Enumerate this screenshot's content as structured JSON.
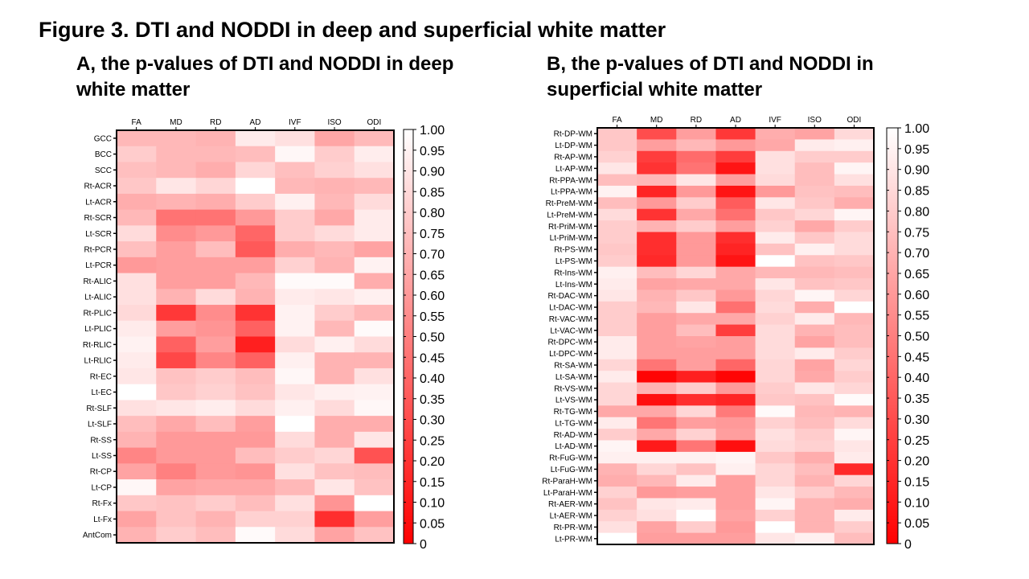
{
  "title": "Figure 3. DTI and NODDI in deep and superficial white matter",
  "colors": {
    "low": "#ff0000",
    "high": "#ffffff"
  },
  "chart_data": [
    {
      "type": "heatmap",
      "title": "A, the p-values of DTI and NODDI in deep white matter",
      "columns": [
        "FA",
        "MD",
        "RD",
        "AD",
        "IVF",
        "ISO",
        "ODI"
      ],
      "rows": [
        "GCC",
        "BCC",
        "SCC",
        "Rt-ACR",
        "Lt-ACR",
        "Rt-SCR",
        "Lt-SCR",
        "Rt-PCR",
        "Lt-PCR",
        "Rt-ALIC",
        "Lt-ALIC",
        "Rt-PLIC",
        "Lt-PLIC",
        "Rt-RLIC",
        "Lt-RLIC",
        "Rt-EC",
        "Lt-EC",
        "Rt-SLF",
        "Lt-SLF",
        "Rt-SS",
        "Lt-SS",
        "Rt-CP",
        "Lt-CP",
        "Rt-Fx",
        "Lt-Fx",
        "AntCom"
      ],
      "values": [
        [
          0.72,
          0.72,
          0.7,
          0.92,
          0.88,
          0.65,
          0.73
        ],
        [
          0.8,
          0.72,
          0.72,
          0.74,
          0.97,
          0.8,
          0.93
        ],
        [
          0.75,
          0.72,
          0.68,
          0.84,
          0.75,
          0.82,
          0.88
        ],
        [
          0.78,
          0.9,
          0.84,
          1.0,
          0.72,
          0.7,
          0.72
        ],
        [
          0.68,
          0.7,
          0.68,
          0.8,
          0.94,
          0.72,
          0.86
        ],
        [
          0.72,
          0.45,
          0.45,
          0.6,
          0.8,
          0.66,
          0.92
        ],
        [
          0.86,
          0.55,
          0.6,
          0.4,
          0.8,
          0.86,
          0.92
        ],
        [
          0.75,
          0.62,
          0.74,
          0.35,
          0.68,
          0.72,
          0.64
        ],
        [
          0.6,
          0.62,
          0.62,
          0.62,
          0.82,
          0.7,
          0.95
        ],
        [
          0.88,
          0.62,
          0.62,
          0.72,
          0.98,
          0.98,
          0.68
        ],
        [
          0.88,
          0.7,
          0.86,
          0.7,
          0.92,
          0.9,
          0.94
        ],
        [
          0.85,
          0.22,
          0.55,
          0.2,
          0.95,
          0.8,
          0.72
        ],
        [
          0.92,
          0.62,
          0.58,
          0.38,
          0.95,
          0.72,
          0.98
        ],
        [
          0.95,
          0.38,
          0.62,
          0.12,
          0.86,
          0.94,
          0.86
        ],
        [
          0.92,
          0.28,
          0.52,
          0.38,
          0.94,
          0.7,
          0.7
        ],
        [
          0.9,
          0.76,
          0.8,
          0.74,
          0.97,
          0.7,
          0.88
        ],
        [
          1.0,
          0.78,
          0.82,
          0.76,
          0.9,
          0.94,
          0.95
        ],
        [
          0.88,
          0.9,
          0.93,
          0.86,
          0.94,
          0.86,
          0.97
        ],
        [
          0.74,
          0.66,
          0.74,
          0.62,
          1.0,
          0.68,
          0.68
        ],
        [
          0.7,
          0.6,
          0.6,
          0.6,
          0.86,
          0.68,
          0.9
        ],
        [
          0.52,
          0.6,
          0.6,
          0.74,
          0.8,
          0.84,
          0.32
        ],
        [
          0.64,
          0.5,
          0.6,
          0.58,
          0.88,
          0.76,
          0.74
        ],
        [
          0.97,
          0.64,
          0.66,
          0.66,
          0.72,
          0.9,
          0.76
        ],
        [
          0.78,
          0.76,
          0.8,
          0.74,
          0.88,
          0.58,
          1.0
        ],
        [
          0.64,
          0.76,
          0.7,
          0.82,
          0.82,
          0.18,
          0.62
        ],
        [
          0.7,
          0.8,
          0.74,
          0.98,
          0.86,
          0.64,
          0.76
        ]
      ],
      "colorbar": {
        "range": [
          0,
          1
        ],
        "ticks": [
          "1.00",
          "0.95",
          "0.90",
          "0.85",
          "0.80",
          "0.75",
          "0.70",
          "0.65",
          "0.60",
          "0.55",
          "0.50",
          "0.45",
          "0.40",
          "0.35",
          "0.30",
          "0.25",
          "0.20",
          "0.15",
          "0.10",
          "0.05",
          "0"
        ]
      }
    },
    {
      "type": "heatmap",
      "title": "B, the p-values of DTI and NODDI in superficial white matter",
      "columns": [
        "FA",
        "MD",
        "RD",
        "AD",
        "IVF",
        "ISO",
        "ODI"
      ],
      "rows": [
        "Rt-DP-WM",
        "Lt-DP-WM",
        "Rt-AP-WM",
        "Lt-AP-WM",
        "Rt-PPA-WM",
        "Lt-PPA-WM",
        "Rt-PreM-WM",
        "Lt-PreM-WM",
        "Rt-PriM-WM",
        "Lt-PriM-WM",
        "Rt-PS-WM",
        "Lt-PS-WM",
        "Rt-Ins-WM",
        "Lt-Ins-WM",
        "Rt-DAC-WM",
        "Lt-DAC-WM",
        "Rt-VAC-WM",
        "Lt-VAC-WM",
        "Rt-DPC-WM",
        "Lt-DPC-WM",
        "Rt-SA-WM",
        "Lt-SA-WM",
        "Rt-VS-WM",
        "Lt-VS-WM",
        "Rt-TG-WM",
        "Lt-TG-WM",
        "Rt-AD-WM",
        "Lt-AD-WM",
        "Rt-FuG-WM",
        "Lt-FuG-WM",
        "Rt-ParaH-WM",
        "Lt-ParaH-WM",
        "Rt-AER-WM",
        "Lt-AER-WM",
        "Rt-PR-WM",
        "Lt-PR-WM"
      ],
      "values": [
        [
          0.78,
          0.3,
          0.62,
          0.22,
          0.68,
          0.64,
          0.85
        ],
        [
          0.78,
          0.62,
          0.72,
          0.6,
          0.66,
          0.92,
          0.94
        ],
        [
          0.82,
          0.24,
          0.42,
          0.24,
          0.88,
          0.8,
          0.8
        ],
        [
          0.9,
          0.2,
          0.45,
          0.08,
          0.88,
          0.74,
          0.96
        ],
        [
          0.74,
          0.72,
          0.9,
          0.62,
          0.86,
          0.74,
          0.88
        ],
        [
          0.95,
          0.14,
          0.6,
          0.08,
          0.6,
          0.76,
          0.74
        ],
        [
          0.74,
          0.6,
          0.8,
          0.36,
          0.9,
          0.78,
          0.68
        ],
        [
          0.86,
          0.2,
          0.66,
          0.44,
          0.78,
          0.84,
          0.96
        ],
        [
          0.8,
          0.7,
          0.8,
          0.62,
          0.82,
          0.66,
          0.8
        ],
        [
          0.8,
          0.18,
          0.6,
          0.18,
          0.92,
          0.78,
          0.86
        ],
        [
          0.78,
          0.18,
          0.6,
          0.14,
          0.76,
          0.94,
          0.86
        ],
        [
          0.8,
          0.16,
          0.6,
          0.08,
          1.0,
          0.76,
          0.78
        ],
        [
          0.94,
          0.74,
          0.84,
          0.66,
          0.72,
          0.72,
          0.74
        ],
        [
          0.92,
          0.64,
          0.66,
          0.66,
          0.9,
          0.76,
          0.78
        ],
        [
          0.9,
          0.7,
          0.78,
          0.6,
          0.84,
          0.96,
          0.84
        ],
        [
          0.8,
          0.72,
          0.9,
          0.44,
          0.86,
          0.68,
          1.0
        ],
        [
          0.8,
          0.62,
          0.66,
          0.66,
          0.82,
          0.92,
          0.72
        ],
        [
          0.8,
          0.62,
          0.74,
          0.24,
          0.86,
          0.7,
          0.74
        ],
        [
          0.92,
          0.62,
          0.64,
          0.62,
          0.86,
          0.64,
          0.74
        ],
        [
          0.92,
          0.62,
          0.62,
          0.62,
          0.86,
          0.92,
          0.8
        ],
        [
          0.84,
          0.46,
          0.62,
          0.4,
          0.84,
          0.64,
          0.84
        ],
        [
          0.92,
          0.02,
          0.12,
          0.02,
          0.84,
          0.66,
          0.8
        ],
        [
          0.84,
          0.7,
          0.8,
          0.6,
          0.8,
          0.9,
          0.84
        ],
        [
          0.84,
          0.06,
          0.18,
          0.14,
          0.78,
          0.76,
          0.98
        ],
        [
          0.66,
          0.66,
          0.84,
          0.48,
          0.98,
          0.72,
          0.7
        ],
        [
          0.92,
          0.46,
          0.62,
          0.6,
          0.82,
          0.74,
          0.86
        ],
        [
          0.8,
          0.66,
          0.82,
          0.62,
          0.88,
          0.8,
          0.96
        ],
        [
          0.96,
          0.1,
          0.46,
          0.06,
          0.86,
          0.82,
          0.9
        ],
        [
          0.94,
          0.94,
          0.94,
          0.96,
          0.78,
          0.68,
          0.92
        ],
        [
          0.7,
          0.84,
          0.76,
          0.94,
          0.84,
          0.74,
          0.16
        ],
        [
          0.68,
          0.72,
          0.92,
          0.62,
          0.84,
          0.7,
          0.84
        ],
        [
          0.82,
          0.6,
          0.62,
          0.62,
          0.9,
          0.8,
          0.72
        ],
        [
          0.76,
          0.9,
          0.92,
          0.62,
          0.96,
          0.7,
          0.68
        ],
        [
          0.82,
          0.88,
          1.0,
          0.64,
          0.82,
          0.7,
          0.92
        ],
        [
          0.88,
          0.64,
          0.8,
          0.6,
          1.0,
          0.7,
          0.8
        ],
        [
          1.0,
          0.62,
          0.62,
          0.62,
          0.9,
          0.94,
          0.74
        ]
      ],
      "colorbar": {
        "range": [
          0,
          1
        ],
        "ticks": [
          "1.00",
          "0.95",
          "0.90",
          "0.85",
          "0.80",
          "0.75",
          "0.70",
          "0.65",
          "0.60",
          "0.55",
          "0.50",
          "0.45",
          "0.40",
          "0.35",
          "0.30",
          "0.25",
          "0.20",
          "0.15",
          "0.10",
          "0.05",
          "0"
        ]
      }
    }
  ]
}
